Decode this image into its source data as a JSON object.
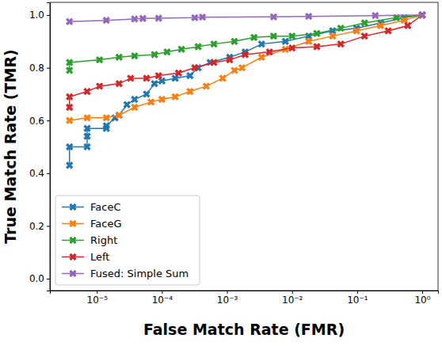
{
  "chart_data": {
    "type": "line",
    "x_label": "False Match Rate (FMR)",
    "y_label": "True Match Rate (TMR)",
    "log": "x",
    "legend": "lower left",
    "grid": false,
    "marker": "X",
    "xlim": [
      1.9e-06,
      1.75
    ],
    "ylim": [
      -0.045,
      1.048
    ],
    "xticks": [
      {
        "value": 1e-05,
        "label": "10⁻⁵"
      },
      {
        "value": 0.0001,
        "label": "10⁻⁴"
      },
      {
        "value": 0.001,
        "label": "10⁻³"
      },
      {
        "value": 0.01,
        "label": "10⁻²"
      },
      {
        "value": 0.1,
        "label": "10⁻¹"
      },
      {
        "value": 1,
        "label": "10⁰"
      }
    ],
    "yticks": [
      {
        "value": 0,
        "label": "0.0"
      },
      {
        "value": 0.2,
        "label": "0.2"
      },
      {
        "value": 0.4,
        "label": "0.4"
      },
      {
        "value": 0.6,
        "label": "0.6"
      },
      {
        "value": 0.8,
        "label": "0.8"
      },
      {
        "value": 1,
        "label": "1.0"
      }
    ],
    "series": [
      {
        "name": "FaceC",
        "color": "#1f77b4",
        "x": [
          3.8e-06,
          3.8e-06,
          7.1e-06,
          7.1e-06,
          7.1e-06,
          1.4e-05,
          1.4e-05,
          1.9e-05,
          2.2e-05,
          2.9e-05,
          3.8e-05,
          5.8e-05,
          7.7e-05,
          0.0001,
          0.00016,
          0.00027,
          0.00036,
          0.00055,
          0.0011,
          0.0019,
          0.0034,
          0.0079,
          0.018,
          0.042,
          0.098,
          0.23,
          0.53,
          1
        ],
        "values": [
          0.43,
          0.5,
          0.5,
          0.54,
          0.57,
          0.57,
          0.58,
          0.61,
          0.62,
          0.66,
          0.68,
          0.7,
          0.74,
          0.75,
          0.76,
          0.77,
          0.8,
          0.82,
          0.84,
          0.86,
          0.89,
          0.9,
          0.92,
          0.94,
          0.95,
          0.97,
          0.99,
          1.0
        ]
      },
      {
        "name": "FaceG",
        "color": "#ff7f0e",
        "x": [
          3.8e-06,
          7.1e-06,
          1.4e-05,
          2.2e-05,
          3.8e-05,
          6.8e-05,
          0.0001,
          0.00016,
          0.00027,
          0.00048,
          0.00086,
          0.0013,
          0.0017,
          0.0034,
          0.0079,
          0.018,
          0.042,
          0.098,
          0.23,
          0.53,
          1
        ],
        "values": [
          0.6,
          0.61,
          0.61,
          0.62,
          0.65,
          0.67,
          0.68,
          0.69,
          0.71,
          0.73,
          0.76,
          0.79,
          0.8,
          0.84,
          0.87,
          0.9,
          0.92,
          0.94,
          0.96,
          0.98,
          1.0
        ]
      },
      {
        "name": "Right",
        "color": "#2ca02c",
        "x": [
          3.8e-06,
          3.8e-06,
          1.1e-05,
          2.2e-05,
          3.8e-05,
          7.7e-05,
          0.00012,
          0.0002,
          0.00036,
          0.00063,
          0.0013,
          0.0026,
          0.0052,
          0.01,
          0.024,
          0.056,
          0.13,
          0.4,
          1
        ],
        "values": [
          0.79,
          0.82,
          0.83,
          0.84,
          0.845,
          0.85,
          0.86,
          0.87,
          0.88,
          0.89,
          0.9,
          0.915,
          0.92,
          0.92,
          0.93,
          0.95,
          0.97,
          0.99,
          1.0
        ]
      },
      {
        "name": "Left",
        "color": "#d62728",
        "x": [
          3.8e-06,
          3.8e-06,
          7.1e-06,
          1.1e-05,
          2.2e-05,
          3.3e-05,
          5.8e-05,
          8.9e-05,
          0.00018,
          0.00032,
          0.00063,
          0.0011,
          0.0019,
          0.0045,
          0.01,
          0.024,
          0.056,
          0.13,
          0.3,
          0.6,
          1
        ],
        "values": [
          0.65,
          0.69,
          0.71,
          0.73,
          0.74,
          0.76,
          0.76,
          0.77,
          0.78,
          0.8,
          0.82,
          0.83,
          0.85,
          0.86,
          0.875,
          0.88,
          0.89,
          0.92,
          0.94,
          0.96,
          1.0
        ]
      },
      {
        "name": "Fused: Simple Sum",
        "color": "#9467bd",
        "x": [
          3.8e-06,
          1.4e-05,
          3.8e-05,
          5.1e-05,
          8.9e-05,
          0.00032,
          0.00042,
          0.0052,
          0.018,
          0.19,
          1
        ],
        "values": [
          0.975,
          0.98,
          0.985,
          0.987,
          0.988,
          0.99,
          0.992,
          0.993,
          0.995,
          0.998,
          1.0
        ]
      }
    ]
  }
}
